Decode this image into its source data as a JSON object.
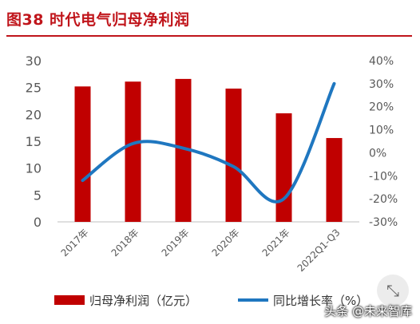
{
  "header": {
    "title": "图38  时代电气归母净利润"
  },
  "watermark": "头条 @未来智库",
  "fab_icon": "collapse-arrows-icon",
  "chart_data": {
    "type": "bar",
    "title": "图38  时代电气归母净利润",
    "categories": [
      "2017年",
      "2018年",
      "2019年",
      "2020年",
      "2021年",
      "2022Q1-Q3"
    ],
    "series": [
      {
        "name": "归母净利润（亿元）",
        "type": "bar",
        "axis": "left",
        "values": [
          25.2,
          26.1,
          26.6,
          24.8,
          20.2,
          15.6
        ],
        "color": "#c00000"
      },
      {
        "name": "同比增长率（%）",
        "type": "line",
        "axis": "right",
        "values": [
          -12,
          4,
          2,
          -6,
          -20,
          30
        ],
        "color": "#1f77c0"
      }
    ],
    "y_left": {
      "ylim": [
        0,
        30
      ],
      "ticks": [
        "0",
        "5",
        "10",
        "15",
        "20",
        "25",
        "30"
      ]
    },
    "y_right": {
      "ylim": [
        -30,
        40
      ],
      "ticks": [
        "-30%",
        "-20%",
        "-10%",
        "0%",
        "10%",
        "20%",
        "30%",
        "40%"
      ]
    },
    "grid": false,
    "legend_position": "bottom"
  }
}
